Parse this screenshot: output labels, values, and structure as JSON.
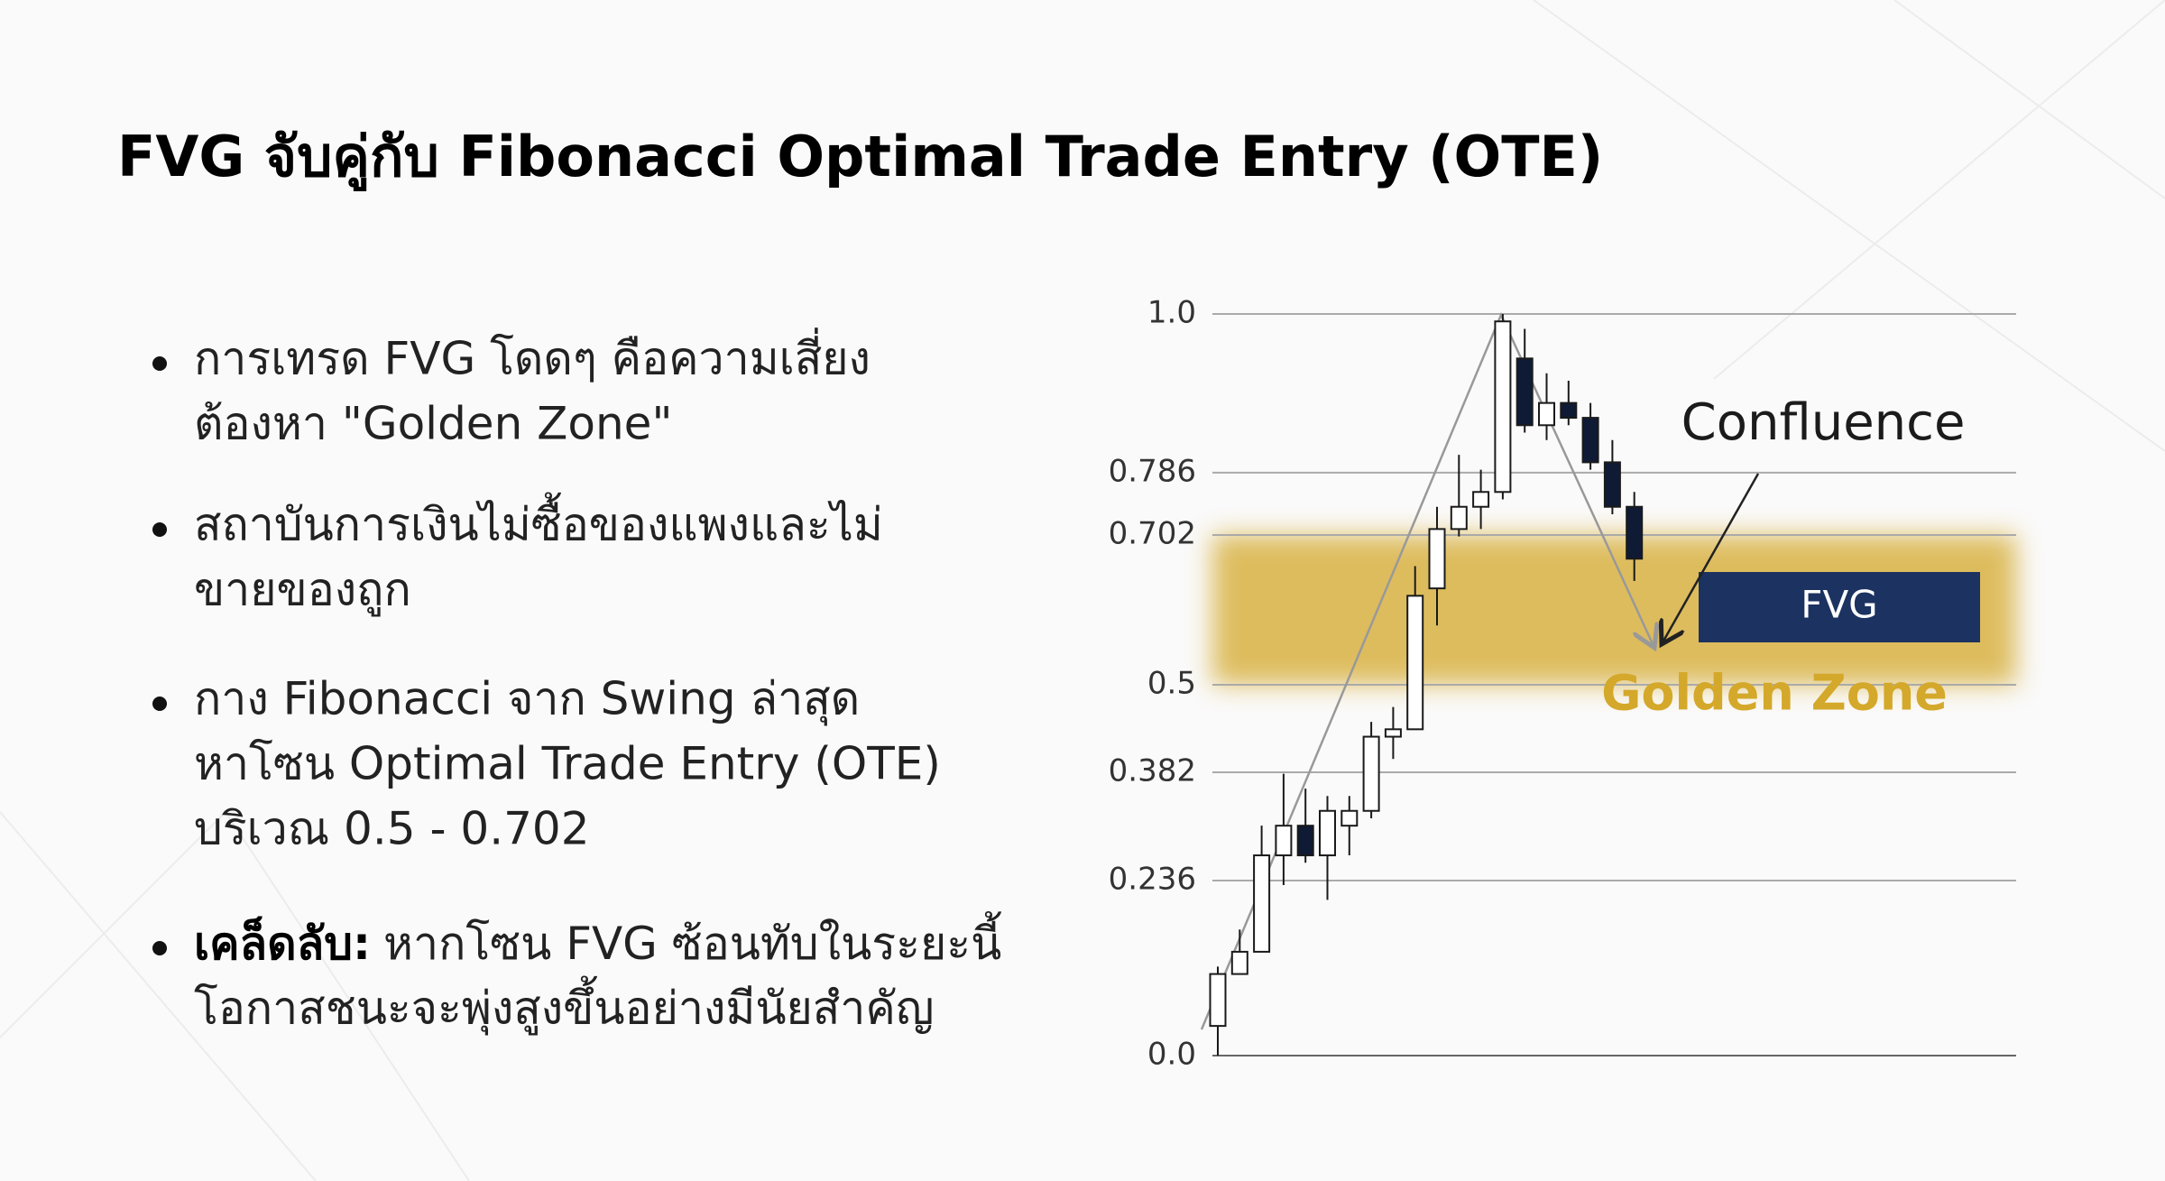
{
  "header": {
    "title": "FVG จับคู่กับ Fibonacci Optimal Trade Entry (OTE)"
  },
  "bullets": [
    {
      "lines": [
        "การเทรด FVG โดดๆ คือความเสี่ยง",
        "ต้องหา \"Golden Zone\""
      ]
    },
    {
      "lines": [
        "สถาบันการเงินไม่ซื้อของแพงและไม่",
        "ขายของถูก"
      ]
    },
    {
      "lines": [
        "กาง Fibonacci จาก Swing ล่าสุด",
        "หาโซน Optimal Trade Entry (OTE)",
        "บริเวณ 0.5 - 0.702"
      ]
    },
    {
      "lead": "เคล็ดลับ:",
      "lines": [
        "หากโซน FVG ซ้อนทับในระยะนี้",
        "โอกาสชนะจะพุ่งสูงขึ้นอย่างมีนัยสำคัญ"
      ]
    }
  ],
  "chart_data": {
    "type": "candlestick",
    "ylim": [
      0,
      1
    ],
    "yticks": [
      {
        "value": 0,
        "label": "0.0"
      },
      0.236,
      0.382,
      0.5,
      0.702,
      0.786,
      {
        "value": 1,
        "label": "1.0"
      }
    ],
    "grid": true,
    "up_color": "#ffffff",
    "down_color": "#0f1a35",
    "open": [
      0.04,
      0.11,
      0.14,
      0.27,
      0.31,
      0.27,
      0.31,
      0.33,
      0.43,
      0.44,
      0.63,
      0.71,
      0.74,
      0.76,
      0.94,
      0.85,
      0.88,
      0.86,
      0.8,
      0.74
    ],
    "high": [
      0.12,
      0.17,
      0.31,
      0.38,
      0.36,
      0.35,
      0.35,
      0.45,
      0.47,
      0.66,
      0.74,
      0.81,
      0.79,
      1.0,
      0.98,
      0.92,
      0.91,
      0.88,
      0.83,
      0.76
    ],
    "low": [
      0,
      0.11,
      0.14,
      0.23,
      0.26,
      0.21,
      0.27,
      0.32,
      0.4,
      0.44,
      0.58,
      0.7,
      0.71,
      0.75,
      0.84,
      0.83,
      0.85,
      0.79,
      0.73,
      0.64
    ],
    "close": [
      0.11,
      0.14,
      0.27,
      0.31,
      0.27,
      0.33,
      0.33,
      0.43,
      0.44,
      0.62,
      0.71,
      0.74,
      0.76,
      0.99,
      0.85,
      0.88,
      0.86,
      0.8,
      0.74,
      0.67
    ],
    "zone": {
      "label": "Golden Zone",
      "range": [
        0.5,
        0.702
      ],
      "color": "#d4a82a"
    },
    "fvg": {
      "label": "FVG",
      "color": "#1c3260"
    },
    "annotation": "Confluence"
  }
}
